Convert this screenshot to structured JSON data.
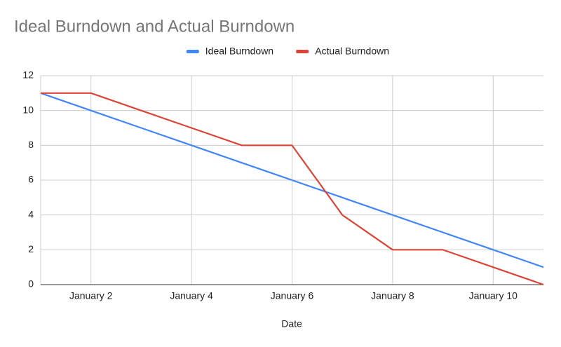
{
  "chart_data": {
    "type": "line",
    "title": "Ideal Burndown and Actual Burndown",
    "x_label": "Date",
    "categories": [
      null,
      "January 2",
      null,
      "January 4",
      null,
      "January 6",
      null,
      "January 8",
      null,
      "January 10",
      null
    ],
    "series": [
      {
        "name": "Ideal Burndown",
        "color": "#4285f4",
        "values": [
          11,
          10,
          9,
          8,
          7,
          6,
          5,
          4,
          3,
          2,
          1
        ]
      },
      {
        "name": "Actual Burndown",
        "color": "#db4437",
        "values": [
          11,
          11,
          10,
          9,
          8,
          8,
          4,
          2,
          2,
          1,
          0
        ]
      }
    ],
    "ylim": [
      0,
      12
    ],
    "yticks": [
      0,
      2,
      4,
      6,
      8,
      10,
      12
    ],
    "grid": true,
    "legend": "top"
  }
}
